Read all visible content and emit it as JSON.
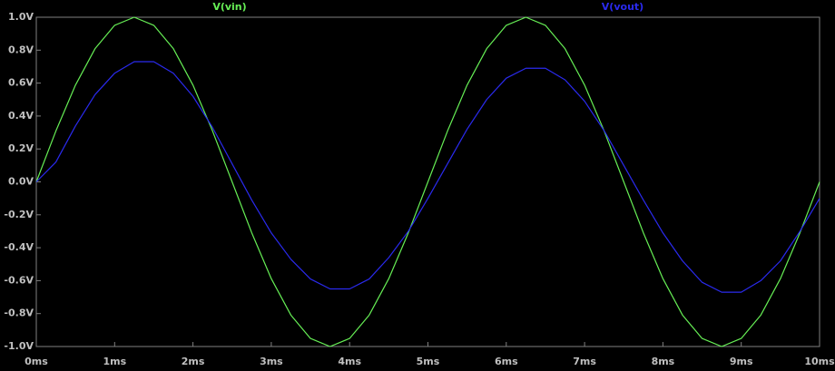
{
  "chart_data": {
    "type": "line",
    "x": [
      0,
      0.25,
      0.5,
      0.75,
      1,
      1.25,
      1.5,
      1.75,
      2,
      2.25,
      2.5,
      2.75,
      3,
      3.25,
      3.5,
      3.75,
      4,
      4.25,
      4.5,
      4.75,
      5,
      5.25,
      5.5,
      5.75,
      6,
      6.25,
      6.5,
      6.75,
      7,
      7.25,
      7.5,
      7.75,
      8,
      8.25,
      8.5,
      8.75,
      9,
      9.25,
      9.5,
      9.75,
      10
    ],
    "series": [
      {
        "name": "V(vin)",
        "color": "#66ee55",
        "values": [
          0,
          0.309,
          0.588,
          0.809,
          0.951,
          1,
          0.951,
          0.809,
          0.588,
          0.309,
          0,
          -0.309,
          -0.588,
          -0.809,
          -0.951,
          -1,
          -0.951,
          -0.809,
          -0.588,
          -0.309,
          0,
          0.309,
          0.588,
          0.809,
          0.951,
          1,
          0.951,
          0.809,
          0.588,
          0.309,
          0,
          -0.309,
          -0.588,
          -0.809,
          -0.951,
          -1,
          -0.951,
          -0.809,
          -0.588,
          -0.309,
          0
        ]
      },
      {
        "name": "V(vout)",
        "color": "#2a2aee",
        "values": [
          0,
          0.12,
          0.34,
          0.53,
          0.66,
          0.73,
          0.73,
          0.66,
          0.52,
          0.33,
          0.11,
          -0.11,
          -0.31,
          -0.47,
          -0.59,
          -0.65,
          -0.65,
          -0.59,
          -0.46,
          -0.3,
          -0.1,
          0.11,
          0.32,
          0.5,
          0.63,
          0.69,
          0.69,
          0.62,
          0.49,
          0.31,
          0.1,
          -0.11,
          -0.31,
          -0.48,
          -0.61,
          -0.67,
          -0.67,
          -0.6,
          -0.48,
          -0.3,
          -0.1
        ]
      }
    ],
    "xlim": [
      0,
      10
    ],
    "xticks": [
      {
        "value": 0,
        "label": "0ms"
      },
      {
        "value": 1,
        "label": "1ms"
      },
      {
        "value": 2,
        "label": "2ms"
      },
      {
        "value": 3,
        "label": "3ms"
      },
      {
        "value": 4,
        "label": "4ms"
      },
      {
        "value": 5,
        "label": "5ms"
      },
      {
        "value": 6,
        "label": "6ms"
      },
      {
        "value": 7,
        "label": "7ms"
      },
      {
        "value": 8,
        "label": "8ms"
      },
      {
        "value": 9,
        "label": "9ms"
      },
      {
        "value": 10,
        "label": "10ms"
      }
    ],
    "ylim": [
      -1,
      1
    ],
    "yticks": [
      {
        "value": 1,
        "label": "1.0V"
      },
      {
        "value": 0.8,
        "label": "0.8V"
      },
      {
        "value": 0.6,
        "label": "0.6V"
      },
      {
        "value": 0.4,
        "label": "0.4V"
      },
      {
        "value": 0.2,
        "label": "0.2V"
      },
      {
        "value": 0,
        "label": "0.0V"
      },
      {
        "value": -0.2,
        "label": "-0.2V"
      },
      {
        "value": -0.4,
        "label": "-0.4V"
      },
      {
        "value": -0.6,
        "label": "-0.6V"
      },
      {
        "value": -0.8,
        "label": "-0.8V"
      },
      {
        "value": -1,
        "label": "-1.0V"
      }
    ],
    "grid": false
  }
}
